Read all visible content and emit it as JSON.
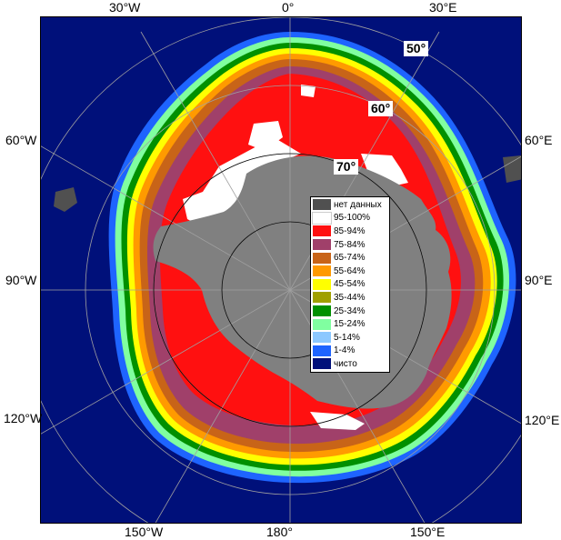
{
  "map": {
    "longitude_labels_top": [
      "30°W",
      "0°",
      "30°E"
    ],
    "longitude_labels_left": [
      "60°W",
      "90°W",
      "120°W"
    ],
    "longitude_labels_right": [
      "60°E",
      "90°E",
      "120°E"
    ],
    "longitude_labels_bottom": [
      "150°W",
      "180°",
      "150°E"
    ],
    "latitude_labels": [
      "50°",
      "60°",
      "70°"
    ],
    "colors": {
      "ocean": "#00107a",
      "land": "#808080",
      "ice_95_100": "#ffffff",
      "ice_85_94": "#ff1010",
      "ice_75_84": "#a0406a",
      "ice_65_74": "#c86418",
      "ice_55_64": "#ff9a00",
      "ice_45_54": "#ffff00",
      "ice_35_44": "#a0a000",
      "ice_25_34": "#009000",
      "ice_15_24": "#80ffa0",
      "ice_5_14": "#8cc8ff",
      "ice_1_4": "#1e64ff",
      "clear": "#00107a",
      "no_data": "#505050"
    }
  },
  "legend": [
    {
      "label": "нет данных",
      "color": "#505050"
    },
    {
      "label": "95-100%",
      "color": "#ffffff"
    },
    {
      "label": "85-94%",
      "color": "#ff1010"
    },
    {
      "label": "75-84%",
      "color": "#a0406a"
    },
    {
      "label": "65-74%",
      "color": "#c86418"
    },
    {
      "label": "55-64%",
      "color": "#ff9a00"
    },
    {
      "label": "45-54%",
      "color": "#ffff00"
    },
    {
      "label": "35-44%",
      "color": "#a0a000"
    },
    {
      "label": "25-34%",
      "color": "#009000"
    },
    {
      "label": "15-24%",
      "color": "#80ffa0"
    },
    {
      "label": "5-14%",
      "color": "#8cc8ff"
    },
    {
      "label": "1-4%",
      "color": "#1e64ff"
    },
    {
      "label": "чисто",
      "color": "#00107a"
    }
  ]
}
